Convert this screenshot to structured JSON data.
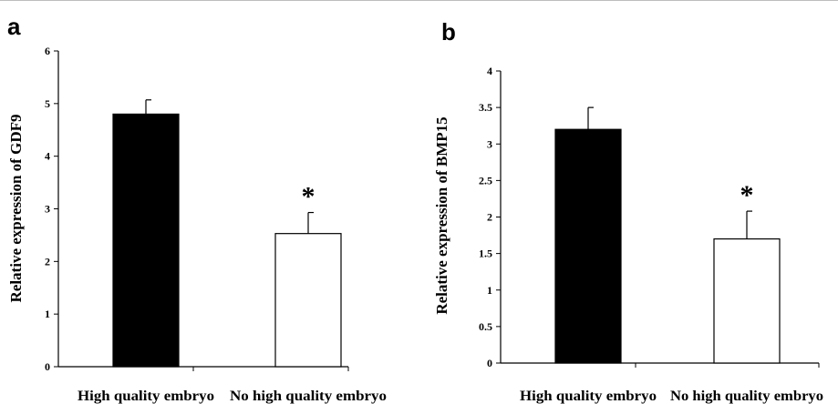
{
  "panels": [
    {
      "letter": "a",
      "chart_data": {
        "type": "bar",
        "categories": [
          "High quality embryo",
          "No high quality embryo"
        ],
        "values": [
          4.8,
          2.53
        ],
        "errors": [
          0.27,
          0.4
        ],
        "bar_colors": [
          "#000000",
          "#ffffff"
        ],
        "annotations": [
          "",
          "*"
        ],
        "ylabel": "Relative expression of GDF9",
        "xlabel": "",
        "ylim": [
          0,
          6
        ],
        "yticks": [
          0,
          1,
          2,
          3,
          4,
          5,
          6
        ],
        "ytick_labels": [
          "0",
          "1",
          "2",
          "3",
          "4",
          "5",
          "6"
        ],
        "grid": false,
        "legend": "none"
      }
    },
    {
      "letter": "b",
      "chart_data": {
        "type": "bar",
        "categories": [
          "High quality embryo",
          "No high quality embryo"
        ],
        "values": [
          3.2,
          1.7
        ],
        "errors": [
          0.3,
          0.38
        ],
        "bar_colors": [
          "#000000",
          "#ffffff"
        ],
        "annotations": [
          "",
          "*"
        ],
        "ylabel": "Relative expression of  BMP15",
        "xlabel": "",
        "ylim": [
          0,
          4
        ],
        "yticks": [
          0,
          0.5,
          1,
          1.5,
          2,
          2.5,
          3,
          3.5,
          4
        ],
        "ytick_labels": [
          "0",
          "0.5",
          "1",
          "1.5",
          "2",
          "2.5",
          "3",
          "3.5",
          "4"
        ],
        "grid": false,
        "legend": "none"
      }
    }
  ]
}
